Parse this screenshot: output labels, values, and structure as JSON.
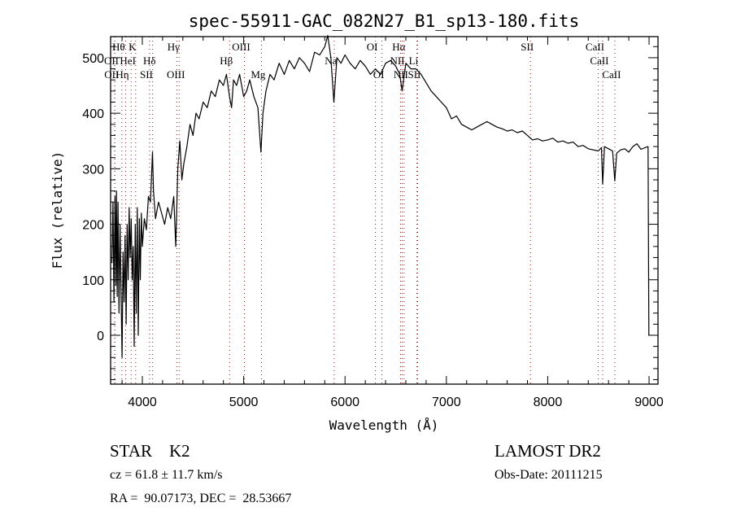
{
  "chart_data": {
    "type": "line",
    "title": "spec-55911-GAC_082N27_B1_sp13-180.fits",
    "xlabel": "Wavelength (Å)",
    "ylabel": "Flux (relative)",
    "xlim": [
      3687,
      9088
    ],
    "ylim": [
      -88,
      538
    ],
    "xticks": [
      4000,
      5000,
      6000,
      7000,
      8000,
      9000
    ],
    "yticks": [
      0,
      100,
      200,
      300,
      400,
      500
    ],
    "x_minor_step": 200,
    "y_minor_step": 20,
    "grid": false,
    "line_marker_color": "#8b1a1a",
    "series": [
      {
        "name": "spectrum",
        "color": "#000000",
        "x": [
          3700,
          3710,
          3720,
          3730,
          3738,
          3745,
          3752,
          3760,
          3770,
          3780,
          3790,
          3800,
          3810,
          3820,
          3830,
          3840,
          3850,
          3860,
          3870,
          3880,
          3890,
          3900,
          3910,
          3920,
          3930,
          3940,
          3950,
          3960,
          3970,
          3980,
          3990,
          4000,
          4020,
          4040,
          4060,
          4080,
          4100,
          4110,
          4130,
          4160,
          4190,
          4220,
          4250,
          4280,
          4310,
          4330,
          4350,
          4370,
          4390,
          4410,
          4440,
          4470,
          4500,
          4530,
          4560,
          4600,
          4640,
          4680,
          4720,
          4760,
          4800,
          4830,
          4860,
          4880,
          4900,
          4930,
          4960,
          5000,
          5030,
          5060,
          5100,
          5140,
          5170,
          5190,
          5220,
          5260,
          5300,
          5350,
          5400,
          5450,
          5500,
          5550,
          5600,
          5650,
          5700,
          5750,
          5800,
          5830,
          5860,
          5890,
          5920,
          5960,
          6000,
          6050,
          6100,
          6150,
          6200,
          6250,
          6300,
          6350,
          6400,
          6450,
          6500,
          6540,
          6563,
          6600,
          6650,
          6700,
          6750,
          6800,
          6850,
          6900,
          6950,
          7000,
          7050,
          7100,
          7150,
          7200,
          7250,
          7300,
          7350,
          7400,
          7450,
          7500,
          7550,
          7600,
          7650,
          7700,
          7750,
          7800,
          7850,
          7900,
          7950,
          8000,
          8050,
          8100,
          8150,
          8200,
          8250,
          8300,
          8350,
          8400,
          8450,
          8500,
          8530,
          8542,
          8560,
          8600,
          8640,
          8662,
          8680,
          8720,
          8760,
          8800,
          8840,
          8880,
          8920,
          8960,
          8990,
          8998
        ],
        "y": [
          130,
          240,
          60,
          250,
          90,
          260,
          70,
          240,
          40,
          200,
          80,
          -40,
          150,
          60,
          180,
          20,
          200,
          100,
          230,
          140,
          210,
          100,
          160,
          -20,
          200,
          40,
          230,
          0,
          210,
          100,
          220,
          160,
          210,
          190,
          250,
          240,
          330,
          260,
          210,
          240,
          220,
          200,
          230,
          210,
          250,
          160,
          300,
          350,
          280,
          310,
          340,
          380,
          360,
          400,
          390,
          420,
          410,
          440,
          430,
          460,
          450,
          470,
          430,
          410,
          460,
          450,
          470,
          430,
          440,
          460,
          430,
          410,
          330,
          400,
          440,
          470,
          460,
          490,
          470,
          495,
          480,
          500,
          490,
          475,
          510,
          505,
          520,
          540,
          500,
          420,
          500,
          490,
          505,
          490,
          480,
          495,
          485,
          470,
          480,
          470,
          490,
          495,
          485,
          470,
          440,
          490,
          480,
          480,
          470,
          455,
          440,
          430,
          420,
          410,
          390,
          395,
          380,
          375,
          370,
          375,
          380,
          385,
          380,
          375,
          372,
          368,
          370,
          365,
          368,
          360,
          352,
          354,
          350,
          352,
          355,
          348,
          350,
          346,
          348,
          340,
          342,
          336,
          334,
          332,
          338,
          272,
          340,
          336,
          332,
          278,
          328,
          334,
          336,
          330,
          340,
          345,
          335,
          338,
          340,
          0
        ]
      }
    ],
    "line_markers": [
      {
        "label": "Hθ",
        "wave": 3798,
        "row": 0
      },
      {
        "label": "K",
        "wave": 3934,
        "row": 0
      },
      {
        "label": "Hγ",
        "wave": 4340,
        "row": 0
      },
      {
        "label": "OIII",
        "wave": 5007,
        "row": 0
      },
      {
        "label": "OI",
        "wave": 6300,
        "row": 0
      },
      {
        "label": "Hα",
        "wave": 6563,
        "row": 0
      },
      {
        "label": "SII",
        "wave": 7830,
        "row": 0
      },
      {
        "label": "CaII",
        "wave": 8498,
        "row": 0
      },
      {
        "label": "OII",
        "wave": 3727,
        "row": 1
      },
      {
        "label": "HeI",
        "wave": 3889,
        "row": 1
      },
      {
        "label": "Hδ",
        "wave": 4102,
        "row": 1
      },
      {
        "label": "Hβ",
        "wave": 4861,
        "row": 1
      },
      {
        "label": "Na",
        "wave": 5893,
        "row": 1
      },
      {
        "label": "NII",
        "wave": 6548,
        "row": 1
      },
      {
        "label": "Li",
        "wave": 6708,
        "row": 1
      },
      {
        "label": "CaII",
        "wave": 8542,
        "row": 1
      },
      {
        "label": "OII",
        "wave": 3729,
        "row": 2
      },
      {
        "label": "Hη",
        "wave": 3835,
        "row": 2
      },
      {
        "label": "SII",
        "wave": 4072,
        "row": 2
      },
      {
        "label": "OIII",
        "wave": 4363,
        "row": 2
      },
      {
        "label": "Mg",
        "wave": 5175,
        "row": 2
      },
      {
        "label": "OI",
        "wave": 6364,
        "row": 2
      },
      {
        "label": "NII",
        "wave": 6583,
        "row": 2
      },
      {
        "label": "SII",
        "wave": 6716,
        "row": 2
      },
      {
        "label": "CaII",
        "wave": 8662,
        "row": 2
      }
    ]
  },
  "info": {
    "class": "STAR    K2",
    "survey": "LAMOST DR2",
    "cz": "cz = 61.8 ± 11.7 km/s",
    "obs_date": "Obs-Date: 20111215",
    "coords": "RA =  90.07173, DEC =  28.53667"
  }
}
